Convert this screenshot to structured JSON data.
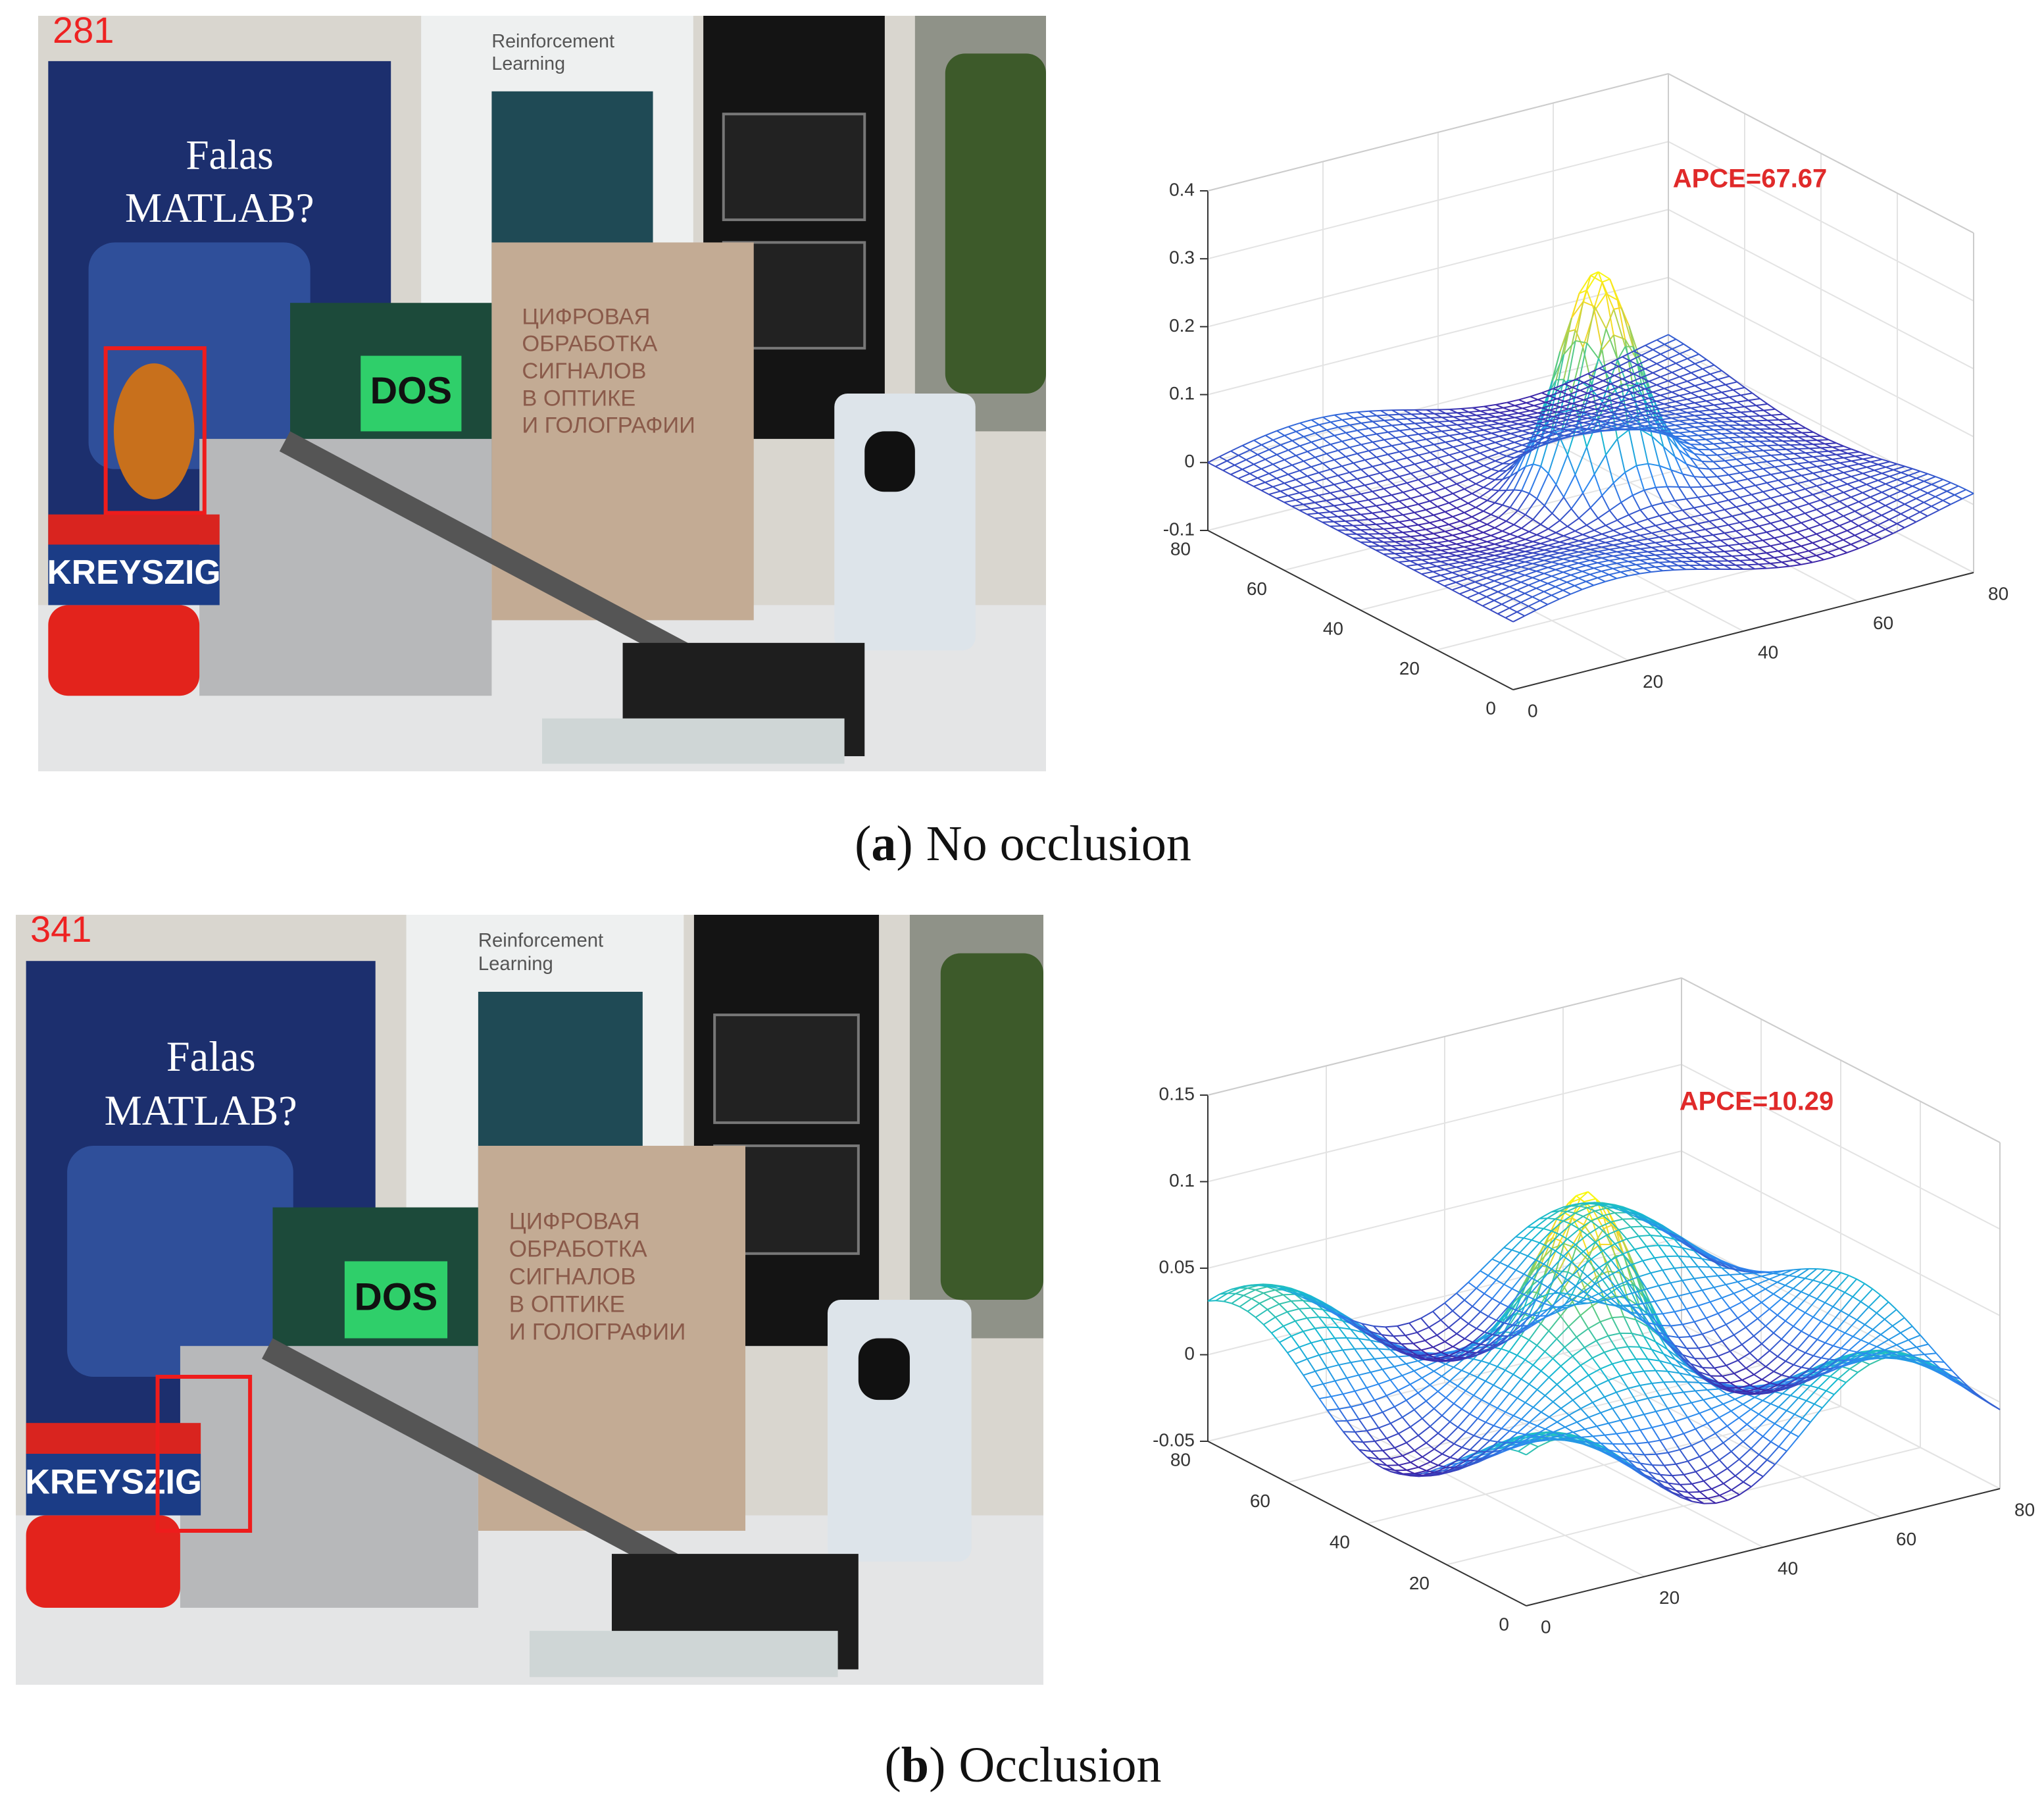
{
  "panels": [
    {
      "frame": "281",
      "apce": "APCE=67.67",
      "z_ticks": [
        "0.4",
        "0.3",
        "0.2",
        "0.1",
        "0",
        "-0.1"
      ],
      "x_ticks": [
        "80",
        "60",
        "40",
        "20",
        "0"
      ],
      "y_ticks": [
        "0",
        "20",
        "40",
        "60",
        "80"
      ],
      "caption": {
        "prefix": "(",
        "label": "a",
        "suffix": ")",
        "text": "No occlusion"
      }
    },
    {
      "frame": "341",
      "apce": "APCE=10.29",
      "z_ticks": [
        "0.15",
        "0.1",
        "0.05",
        "0",
        "-0.05"
      ],
      "x_ticks": [
        "80",
        "60",
        "40",
        "20",
        "0"
      ],
      "y_ticks": [
        "0",
        "20",
        "40",
        "60",
        "80"
      ],
      "caption": {
        "prefix": "(",
        "label": "b",
        "suffix": ")",
        "text": "Occlusion"
      }
    }
  ],
  "scene": {
    "magazine_1": "Falas",
    "magazine_2": "MATLAB?",
    "book_1": "Reinforcement",
    "book_2": "Learning",
    "dos": "DOS",
    "box": "KREYSZIG",
    "russian": [
      "ЦИФРОВАЯ",
      "ОБРАБОТКА",
      "СИГНАЛОВ",
      "В ОПТИКЕ",
      "И ГОЛОГРАФИИ"
    ]
  }
}
